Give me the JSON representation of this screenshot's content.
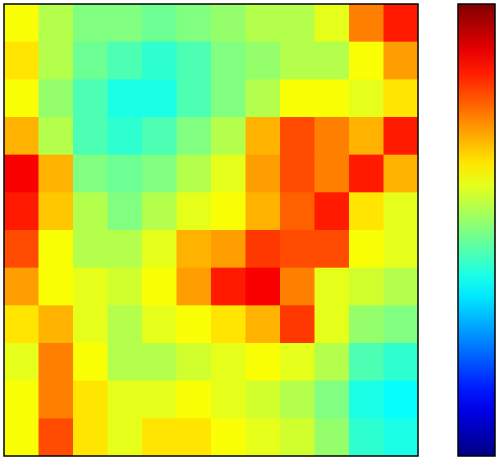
{
  "chart_data": {
    "type": "heatmap",
    "colormap": "jet",
    "zlim": [
      0,
      1
    ],
    "colorbar": true,
    "z": [
      [
        0.62,
        0.55,
        0.5,
        0.5,
        0.48,
        0.5,
        0.52,
        0.55,
        0.55,
        0.6,
        0.75,
        0.85
      ],
      [
        0.65,
        0.55,
        0.48,
        0.45,
        0.42,
        0.45,
        0.5,
        0.52,
        0.55,
        0.55,
        0.62,
        0.72
      ],
      [
        0.62,
        0.52,
        0.45,
        0.4,
        0.4,
        0.45,
        0.5,
        0.55,
        0.62,
        0.62,
        0.6,
        0.65
      ],
      [
        0.7,
        0.55,
        0.45,
        0.42,
        0.45,
        0.5,
        0.55,
        0.7,
        0.8,
        0.75,
        0.7,
        0.85
      ],
      [
        0.88,
        0.7,
        0.5,
        0.48,
        0.5,
        0.55,
        0.6,
        0.72,
        0.8,
        0.75,
        0.85,
        0.7
      ],
      [
        0.85,
        0.68,
        0.55,
        0.5,
        0.55,
        0.6,
        0.62,
        0.7,
        0.78,
        0.85,
        0.65,
        0.6
      ],
      [
        0.8,
        0.62,
        0.55,
        0.55,
        0.6,
        0.7,
        0.72,
        0.82,
        0.8,
        0.8,
        0.62,
        0.6
      ],
      [
        0.72,
        0.62,
        0.6,
        0.58,
        0.62,
        0.72,
        0.85,
        0.88,
        0.75,
        0.6,
        0.58,
        0.55
      ],
      [
        0.65,
        0.7,
        0.6,
        0.55,
        0.6,
        0.62,
        0.65,
        0.7,
        0.82,
        0.6,
        0.52,
        0.5
      ],
      [
        0.6,
        0.75,
        0.62,
        0.55,
        0.55,
        0.58,
        0.6,
        0.62,
        0.6,
        0.55,
        0.45,
        0.42
      ],
      [
        0.62,
        0.75,
        0.65,
        0.6,
        0.6,
        0.62,
        0.6,
        0.58,
        0.55,
        0.5,
        0.4,
        0.38
      ],
      [
        0.62,
        0.8,
        0.65,
        0.6,
        0.65,
        0.65,
        0.62,
        0.6,
        0.58,
        0.52,
        0.42,
        0.4
      ]
    ]
  }
}
